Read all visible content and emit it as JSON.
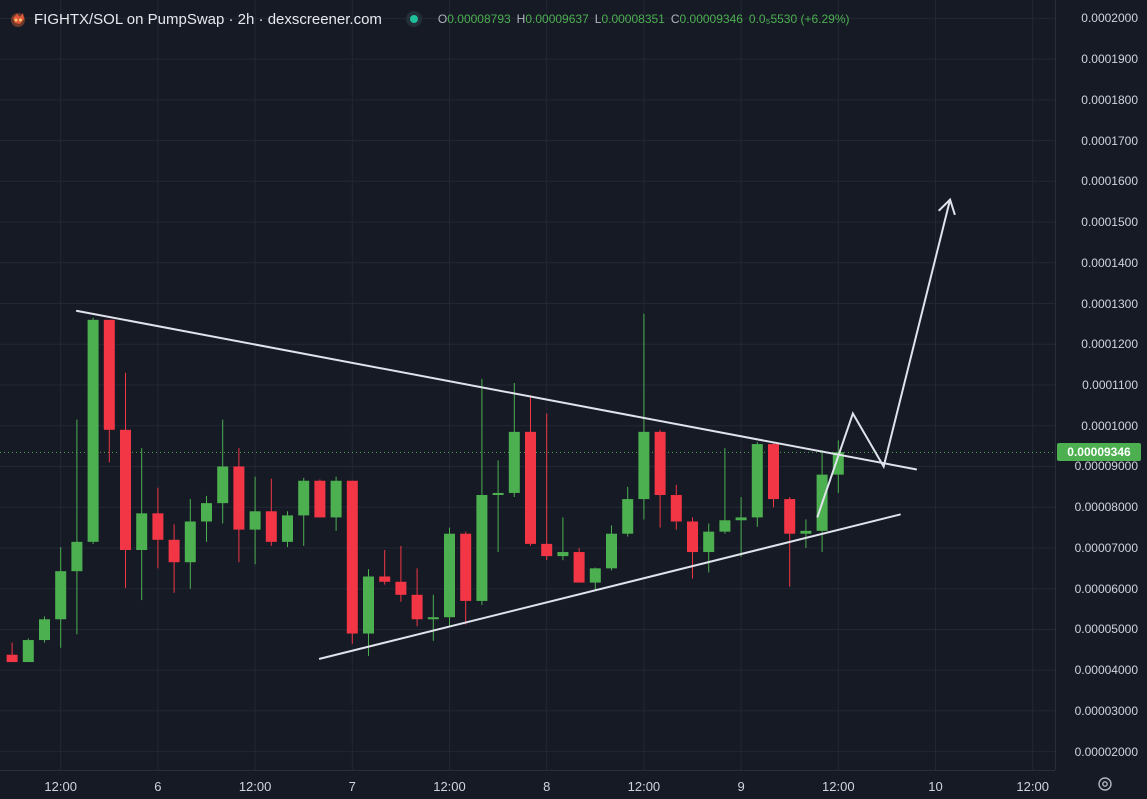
{
  "header": {
    "symbol": "FIGHTX/SOL on PumpSwap · 2h · dexscreener.com",
    "ohlc": {
      "open_key": "O",
      "open": "0.00008793",
      "high_key": "H",
      "high": "0.00009637",
      "low_key": "L",
      "low": "0.00008351",
      "close_key": "C",
      "close": "0.00009346",
      "change": "0.0₅5530 (+6.29%)"
    }
  },
  "price_axis": {
    "ticks": [
      {
        "value": 2e-05,
        "label": "0.00002000"
      },
      {
        "value": 3e-05,
        "label": "0.00003000"
      },
      {
        "value": 4e-05,
        "label": "0.00004000"
      },
      {
        "value": 5e-05,
        "label": "0.00005000"
      },
      {
        "value": 6e-05,
        "label": "0.00006000"
      },
      {
        "value": 7e-05,
        "label": "0.00007000"
      },
      {
        "value": 8e-05,
        "label": "0.00008000"
      },
      {
        "value": 9e-05,
        "label": "0.00009000"
      },
      {
        "value": 0.0001,
        "label": "0.0001000"
      },
      {
        "value": 0.00011,
        "label": "0.0001100"
      },
      {
        "value": 0.00012,
        "label": "0.0001200"
      },
      {
        "value": 0.00013,
        "label": "0.0001300"
      },
      {
        "value": 0.00014,
        "label": "0.0001400"
      },
      {
        "value": 0.00015,
        "label": "0.0001500"
      },
      {
        "value": 0.00016,
        "label": "0.0001600"
      },
      {
        "value": 0.00017,
        "label": "0.0001700"
      },
      {
        "value": 0.00018,
        "label": "0.0001800"
      },
      {
        "value": 0.00019,
        "label": "0.0001900"
      },
      {
        "value": 0.0002,
        "label": "0.0002000"
      }
    ],
    "last_price": 9.346e-05,
    "last_price_label": "0.00009346"
  },
  "time_axis": {
    "labels": [
      {
        "label": "12:00",
        "bar": 3.5
      },
      {
        "label": "6",
        "bar": 9.5
      },
      {
        "label": "12:00",
        "bar": 15.5
      },
      {
        "label": "7",
        "bar": 21.5
      },
      {
        "label": "12:00",
        "bar": 27.5
      },
      {
        "label": "8",
        "bar": 33.5
      },
      {
        "label": "12:00",
        "bar": 39.5
      },
      {
        "label": "9",
        "bar": 45.5
      },
      {
        "label": "12:00",
        "bar": 51.5
      },
      {
        "label": "10",
        "bar": 57.5
      },
      {
        "label": "12:00",
        "bar": 63.5
      }
    ]
  },
  "colors": {
    "background": "#161a25",
    "grid": "#232734",
    "up": "#4caf50",
    "down": "#f23645",
    "drawing": "#e0e3eb",
    "last_price_line": "#4caf50"
  },
  "chart_data": {
    "type": "candlestick",
    "title": "FIGHTX/SOL on PumpSwap · 2h · dexscreener.com",
    "ylim": [
      1.55e-05,
      0.0002045
    ],
    "grid": true,
    "ohlc": [
      {
        "o": 4.38e-05,
        "h": 4.68e-05,
        "l": 4.2e-05,
        "c": 4.2e-05
      },
      {
        "o": 4.2e-05,
        "h": 4.78e-05,
        "l": 4.2e-05,
        "c": 4.74e-05
      },
      {
        "o": 4.74e-05,
        "h": 5.32e-05,
        "l": 4.68e-05,
        "c": 5.25e-05
      },
      {
        "o": 5.25e-05,
        "h": 7.02e-05,
        "l": 4.55e-05,
        "c": 6.43e-05
      },
      {
        "o": 6.43e-05,
        "h": 0.0001015,
        "l": 4.88e-05,
        "c": 7.15e-05
      },
      {
        "o": 7.15e-05,
        "h": 0.0001265,
        "l": 7.1e-05,
        "c": 0.000126
      },
      {
        "o": 0.000126,
        "h": 0.0001255,
        "l": 9.1e-05,
        "c": 9.9e-05
      },
      {
        "o": 9.9e-05,
        "h": 0.000113,
        "l": 6.02e-05,
        "c": 6.95e-05
      },
      {
        "o": 6.95e-05,
        "h": 9.45e-05,
        "l": 5.72e-05,
        "c": 7.85e-05
      },
      {
        "o": 7.85e-05,
        "h": 8.48e-05,
        "l": 6.5e-05,
        "c": 7.2e-05
      },
      {
        "o": 7.2e-05,
        "h": 7.58e-05,
        "l": 5.9e-05,
        "c": 6.65e-05
      },
      {
        "o": 6.65e-05,
        "h": 8.2e-05,
        "l": 6e-05,
        "c": 7.65e-05
      },
      {
        "o": 7.65e-05,
        "h": 8.28e-05,
        "l": 7.15e-05,
        "c": 8.1e-05
      },
      {
        "o": 8.1e-05,
        "h": 0.0001015,
        "l": 7.6e-05,
        "c": 9e-05
      },
      {
        "o": 9e-05,
        "h": 9.45e-05,
        "l": 6.65e-05,
        "c": 7.45e-05
      },
      {
        "o": 7.45e-05,
        "h": 8.75e-05,
        "l": 6.6e-05,
        "c": 7.9e-05
      },
      {
        "o": 7.9e-05,
        "h": 8.7e-05,
        "l": 7.05e-05,
        "c": 7.15e-05
      },
      {
        "o": 7.15e-05,
        "h": 7.9e-05,
        "l": 7.02e-05,
        "c": 7.8e-05
      },
      {
        "o": 7.8e-05,
        "h": 8.72e-05,
        "l": 7.05e-05,
        "c": 8.65e-05
      },
      {
        "o": 8.65e-05,
        "h": 8.68e-05,
        "l": 7.75e-05,
        "c": 7.75e-05
      },
      {
        "o": 7.75e-05,
        "h": 8.75e-05,
        "l": 7.42e-05,
        "c": 8.65e-05
      },
      {
        "o": 8.65e-05,
        "h": 8.65e-05,
        "l": 4.65e-05,
        "c": 4.9e-05
      },
      {
        "o": 4.9e-05,
        "h": 6.48e-05,
        "l": 4.35e-05,
        "c": 6.3e-05
      },
      {
        "o": 6.3e-05,
        "h": 6.95e-05,
        "l": 6.1e-05,
        "c": 6.17e-05
      },
      {
        "o": 6.17e-05,
        "h": 7.05e-05,
        "l": 5.68e-05,
        "c": 5.85e-05
      },
      {
        "o": 5.85e-05,
        "h": 6.5e-05,
        "l": 5.08e-05,
        "c": 5.25e-05
      },
      {
        "o": 5.25e-05,
        "h": 5.85e-05,
        "l": 4.72e-05,
        "c": 5.3e-05
      },
      {
        "o": 5.3e-05,
        "h": 7.5e-05,
        "l": 5.05e-05,
        "c": 7.35e-05
      },
      {
        "o": 7.35e-05,
        "h": 7.4e-05,
        "l": 5.12e-05,
        "c": 5.7e-05
      },
      {
        "o": 5.7e-05,
        "h": 0.0001115,
        "l": 5.6e-05,
        "c": 8.3e-05
      },
      {
        "o": 8.3e-05,
        "h": 9.15e-05,
        "l": 6.9e-05,
        "c": 8.35e-05
      },
      {
        "o": 8.35e-05,
        "h": 0.0001105,
        "l": 8.25e-05,
        "c": 9.85e-05
      },
      {
        "o": 9.85e-05,
        "h": 0.0001075,
        "l": 7.05e-05,
        "c": 7.1e-05
      },
      {
        "o": 7.1e-05,
        "h": 0.000103,
        "l": 6.7e-05,
        "c": 6.8e-05
      },
      {
        "o": 6.8e-05,
        "h": 7.75e-05,
        "l": 6.7e-05,
        "c": 6.9e-05
      },
      {
        "o": 6.9e-05,
        "h": 7e-05,
        "l": 6.15e-05,
        "c": 6.15e-05
      },
      {
        "o": 6.15e-05,
        "h": 6.52e-05,
        "l": 5.98e-05,
        "c": 6.5e-05
      },
      {
        "o": 6.5e-05,
        "h": 7.55e-05,
        "l": 6.45e-05,
        "c": 7.35e-05
      },
      {
        "o": 7.35e-05,
        "h": 8.5e-05,
        "l": 7.28e-05,
        "c": 8.2e-05
      },
      {
        "o": 8.2e-05,
        "h": 0.0001275,
        "l": 7.7e-05,
        "c": 9.85e-05
      },
      {
        "o": 9.85e-05,
        "h": 9.9e-05,
        "l": 7.5e-05,
        "c": 8.3e-05
      },
      {
        "o": 8.3e-05,
        "h": 8.55e-05,
        "l": 7.45e-05,
        "c": 7.65e-05
      },
      {
        "o": 7.65e-05,
        "h": 7.75e-05,
        "l": 6.25e-05,
        "c": 6.9e-05
      },
      {
        "o": 6.9e-05,
        "h": 7.6e-05,
        "l": 6.4e-05,
        "c": 7.4e-05
      },
      {
        "o": 7.4e-05,
        "h": 9.45e-05,
        "l": 7.35e-05,
        "c": 7.68e-05
      },
      {
        "o": 7.68e-05,
        "h": 8.25e-05,
        "l": 6.78e-05,
        "c": 7.75e-05
      },
      {
        "o": 7.75e-05,
        "h": 9.6e-05,
        "l": 7.52e-05,
        "c": 9.55e-05
      },
      {
        "o": 9.55e-05,
        "h": 9.6e-05,
        "l": 8e-05,
        "c": 8.2e-05
      },
      {
        "o": 8.2e-05,
        "h": 8.25e-05,
        "l": 6.05e-05,
        "c": 7.35e-05
      },
      {
        "o": 7.35e-05,
        "h": 7.7e-05,
        "l": 7e-05,
        "c": 7.42e-05
      },
      {
        "o": 7.42e-05,
        "h": 9.4e-05,
        "l": 6.9e-05,
        "c": 8.8e-05
      },
      {
        "o": 8.8e-05,
        "h": 9.64e-05,
        "l": 8.35e-05,
        "c": 9.35e-05
      }
    ]
  },
  "drawings": {
    "triangle_upper": {
      "from": {
        "bar": 4.5,
        "price": 0.0001282
      },
      "to": {
        "bar": 56.3,
        "price": 8.93e-05
      }
    },
    "triangle_lower": {
      "from": {
        "bar": 19.5,
        "price": 4.28e-05
      },
      "to": {
        "bar": 55.3,
        "price": 7.82e-05
      }
    },
    "projection": [
      {
        "bar": 50.2,
        "price": 7.75e-05
      },
      {
        "bar": 52.4,
        "price": 0.000103
      },
      {
        "bar": 54.3,
        "price": 9e-05
      },
      {
        "bar": 58.4,
        "price": 0.0001555
      }
    ]
  }
}
